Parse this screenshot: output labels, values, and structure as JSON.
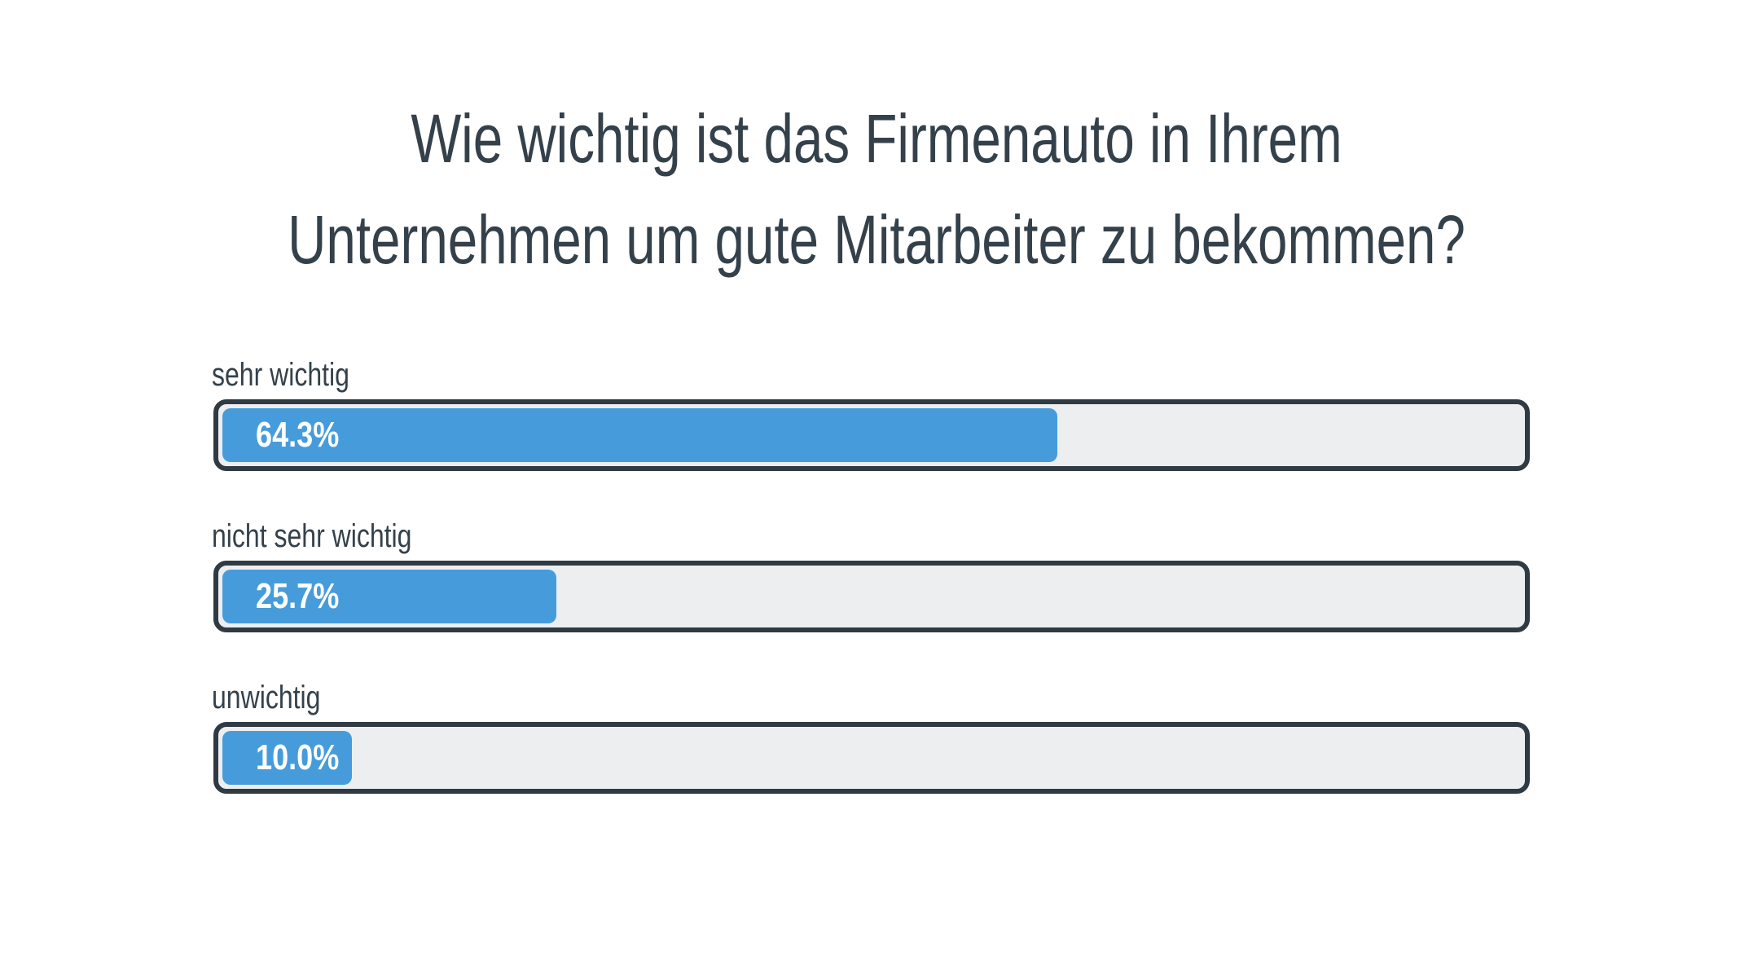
{
  "chart_data": {
    "type": "bar",
    "orientation": "horizontal",
    "title": "Wie wichtig ist das Firmenauto in Ihrem Unternehmen um gute Mitarbeiter zu bekommen?",
    "title_lines": [
      "Wie wichtig ist das Firmenauto in Ihrem",
      "Unternehmen um gute Mitarbeiter zu bekommen?"
    ],
    "categories": [
      "sehr wichtig",
      "nicht sehr wichtig",
      "unwichtig"
    ],
    "values": [
      64.3,
      25.7,
      10.0
    ],
    "value_labels": [
      "64.3%",
      "25.7%",
      "10.0%"
    ],
    "xlim": [
      0,
      100
    ],
    "colors": {
      "fill": "#469cdb",
      "track": "#eceef0",
      "border": "#2f3a43",
      "text": "#34414b"
    }
  }
}
